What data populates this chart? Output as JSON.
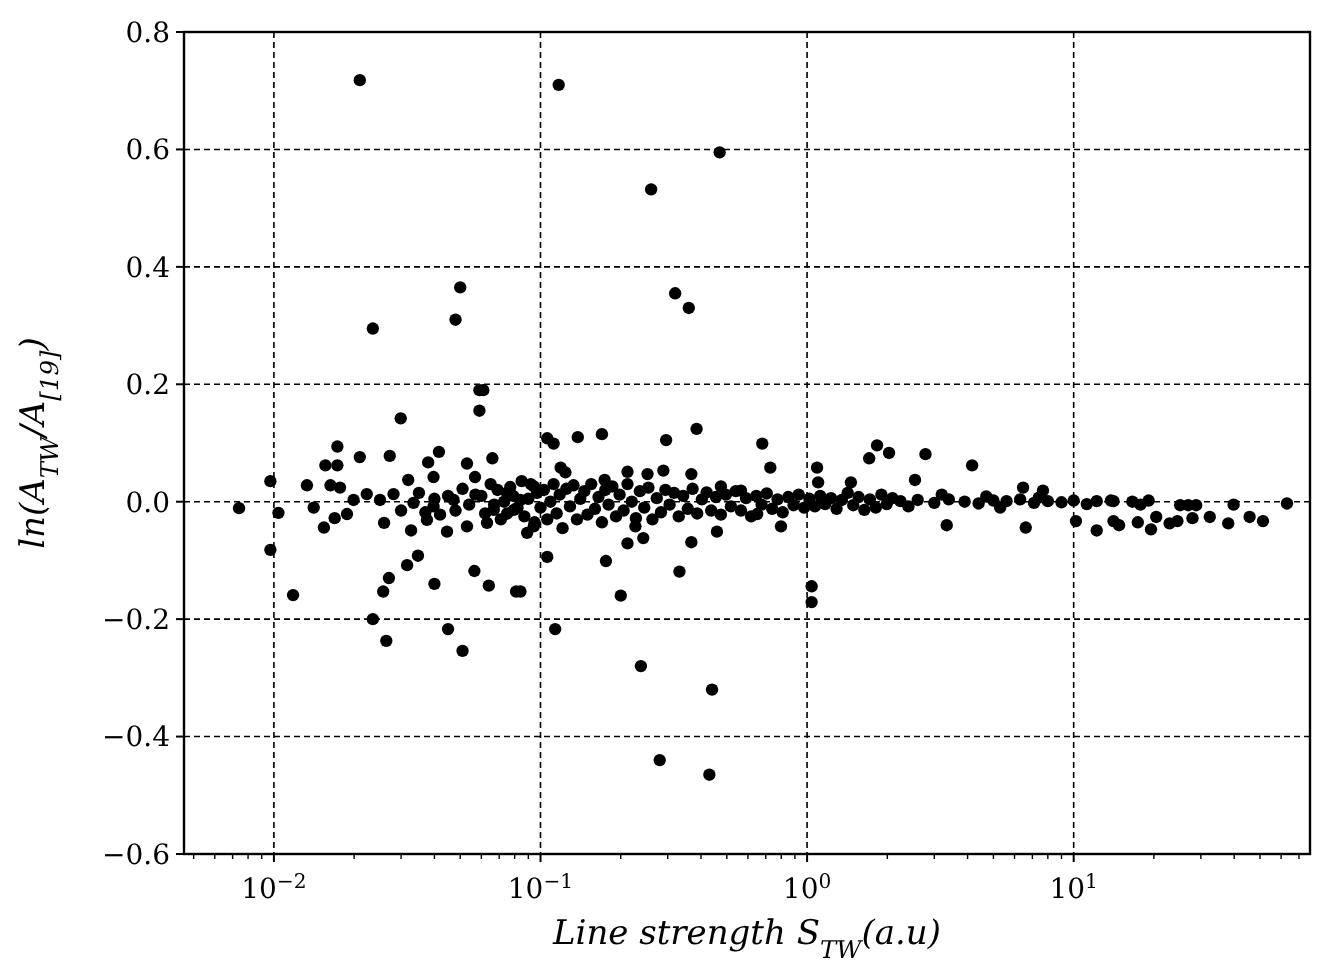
{
  "chart_data": {
    "type": "scatter",
    "xlabel": "Line strength S$_{TW}$(a.u)",
    "ylabel": "ln(A$_{TW}$/A$_{[19]}$)",
    "log": "x",
    "grid": true,
    "marker": "circle",
    "xlim": [
      0.0046,
      77
    ],
    "ylim": [
      -0.6,
      0.8
    ],
    "xticks": [
      {
        "value": 0.01,
        "label": "10$^{−2}$"
      },
      {
        "value": 0.1,
        "label": "10$^{−1}$"
      },
      {
        "value": 1,
        "label": "10$^{0}$"
      },
      {
        "value": 10,
        "label": "10$^{1}$"
      }
    ],
    "yticks": [
      {
        "value": -0.6,
        "label": "−0.6"
      },
      {
        "value": -0.4,
        "label": "−0.4"
      },
      {
        "value": -0.2,
        "label": "−0.2"
      },
      {
        "value": 0,
        "label": "0.0"
      },
      {
        "value": 0.2,
        "label": "0.2"
      },
      {
        "value": 0.4,
        "label": "0.4"
      },
      {
        "value": 0.6,
        "label": "0.6"
      },
      {
        "value": 0.8,
        "label": "0.8"
      }
    ],
    "series": [
      {
        "color": "#000000",
        "x": [
          0.0074,
          0.0097,
          0.0097,
          0.0104,
          0.0118,
          0.0235,
          0.0235,
          0.0264,
          0.0299,
          0.059,
          0.061,
          0.059,
          0.048,
          0.05,
          0.021,
          0.051,
          0.045,
          0.0565,
          0.064,
          0.081,
          0.04,
          0.0316,
          0.0347,
          0.027,
          0.0257,
          0.0173,
          0.0156,
          0.0173,
          0.0163,
          0.0177,
          0.0133,
          0.021,
          0.0272,
          0.0319,
          0.0379,
          0.0416,
          0.0397,
          0.053,
          0.0568,
          0.066,
          0.0141,
          0.0154,
          0.0169,
          0.0188,
          0.0199,
          0.0223,
          0.025,
          0.0281,
          0.0259,
          0.0327,
          0.0375,
          0.0446,
          0.053,
          0.063,
          0.0748,
          0.0891,
          0.0841,
          0.0944,
          0.0334,
          0.0397,
          0.0472,
          0.0668,
          0.0794,
          0.106,
          0.112,
          0.138,
          0.17,
          0.296,
          0.385,
          0.679,
          0.728,
          1.09,
          1.71,
          1.83,
          2.03,
          0.119,
          0.124,
          0.212,
          0.252,
          0.289,
          0.368,
          0.174,
          0.475,
          0.565,
          1.1,
          1.46,
          2.54,
          0.106,
          0.176,
          0.0841,
          0.2,
          0.332,
          0.1135,
          0.238,
          1.04,
          1.04,
          0.212,
          0.243,
          0.227,
          0.368,
          0.459,
          0.798,
          0.65,
          0.0944,
          0.117,
          0.26,
          0.47,
          0.32,
          0.36,
          0.28,
          0.43,
          0.44,
          2.78,
          4.16,
          3.34,
          6.61,
          6.46,
          7.67,
          10.2,
          12.2,
          14.1,
          14.8,
          17.4,
          19.5,
          20.4,
          22.9,
          24.5,
          26.9,
          27.9,
          32.4,
          38,
          45.7,
          51.3,
          63.1,
          14.1,
          16.6,
          19.1,
          12.2,
          13.8,
          39.8,
          25.1,
          28.8,
          17.8,
          2.24,
          2.6,
          3,
          3.4,
          3.9,
          4.4,
          5,
          5.6,
          6.3,
          7.1,
          8,
          9,
          10,
          11.2,
          2.4,
          3.2,
          4.7,
          5.3,
          7.4,
          0.06,
          0.062,
          0.065,
          0.067,
          0.069,
          0.071,
          0.073,
          0.075,
          0.077,
          0.079,
          0.082,
          0.085,
          0.087,
          0.09,
          0.092,
          0.095,
          0.097,
          0.1,
          0.103,
          0.106,
          0.109,
          0.112,
          0.115,
          0.118,
          0.121,
          0.125,
          0.129,
          0.133,
          0.137,
          0.141,
          0.146,
          0.15,
          0.155,
          0.16,
          0.165,
          0.17,
          0.175,
          0.18,
          0.186,
          0.192,
          0.198,
          0.205,
          0.212,
          0.22,
          0.228,
          0.236,
          0.245,
          0.254,
          0.263,
          0.273,
          0.283,
          0.294,
          0.305,
          0.317,
          0.33,
          0.343,
          0.357,
          0.372,
          0.387,
          0.403,
          0.42,
          0.437,
          0.455,
          0.475,
          0.496,
          0.518,
          0.54,
          0.565,
          0.59,
          0.617,
          0.645,
          0.675,
          0.706,
          0.74,
          0.775,
          0.81,
          0.85,
          0.89,
          0.93,
          0.975,
          1.02,
          1.07,
          1.12,
          1.17,
          1.23,
          1.29,
          1.35,
          1.42,
          1.49,
          1.56,
          1.64,
          1.72,
          1.81,
          1.9,
          1.99,
          2.09,
          0.045,
          0.048,
          0.051,
          0.054,
          0.057,
          0.04,
          0.042,
          0.035,
          0.037,
          0.03
        ],
        "values": [
          -0.011,
          0.035,
          -0.082,
          -0.019,
          -0.159,
          0.295,
          -0.2,
          -0.237,
          0.142,
          0.19,
          0.19,
          0.155,
          0.31,
          0.365,
          0.718,
          -0.254,
          -0.217,
          -0.118,
          -0.143,
          -0.153,
          -0.14,
          -0.108,
          -0.092,
          -0.13,
          -0.153,
          0.094,
          0.062,
          0.062,
          0.028,
          0.024,
          0.028,
          0.076,
          0.078,
          0.037,
          0.067,
          0.085,
          0.042,
          0.065,
          0.042,
          0.074,
          -0.01,
          -0.044,
          -0.028,
          -0.021,
          0.003,
          0.013,
          0.003,
          0.013,
          -0.036,
          -0.049,
          -0.031,
          -0.051,
          -0.042,
          -0.036,
          0.015,
          -0.053,
          0.003,
          0.026,
          -0.002,
          -0.008,
          0.003,
          -0.014,
          -0.014,
          0.108,
          0.099,
          0.11,
          0.115,
          0.105,
          0.124,
          0.099,
          0.058,
          0.058,
          0.074,
          0.096,
          0.083,
          0.058,
          0.05,
          0.051,
          0.047,
          0.053,
          0.047,
          0.037,
          0.026,
          0.019,
          0.033,
          0.033,
          0.037,
          -0.094,
          -0.101,
          -0.153,
          -0.16,
          -0.119,
          -0.217,
          -0.28,
          -0.144,
          -0.171,
          -0.071,
          -0.062,
          -0.042,
          -0.069,
          -0.051,
          -0.042,
          -0.021,
          -0.042,
          0.71,
          0.532,
          0.595,
          0.355,
          0.33,
          -0.44,
          -0.465,
          -0.32,
          0.081,
          0.062,
          -0.04,
          -0.044,
          0.024,
          0.019,
          -0.033,
          -0.049,
          -0.033,
          -0.04,
          -0.035,
          -0.047,
          -0.026,
          -0.037,
          -0.033,
          -0.006,
          -0.028,
          -0.026,
          -0.037,
          -0.026,
          -0.033,
          -0.003,
          0.001,
          0,
          0.002,
          0.001,
          0.002,
          -0.005,
          -0.006,
          -0.006,
          -0.005,
          0.001,
          0.003,
          -0.002,
          0.004,
          0,
          -0.003,
          0.002,
          0.001,
          0.004,
          -0.002,
          0.001,
          -0.001,
          0.002,
          -0.004,
          -0.008,
          0.012,
          0.009,
          -0.01,
          0.007,
          0.01,
          -0.02,
          0.03,
          -0.005,
          0.02,
          -0.03,
          0,
          -0.02,
          0.025,
          0.01,
          -0.01,
          0.035,
          -0.025,
          0.005,
          0.03,
          -0.035,
          0.015,
          -0.01,
          0.02,
          -0.03,
          0,
          0.03,
          -0.02,
          0.012,
          -0.045,
          0.022,
          -0.008,
          0.028,
          -0.03,
          0.005,
          0.018,
          -0.022,
          0.03,
          -0.012,
          0.008,
          -0.035,
          0.02,
          -0.005,
          0.026,
          -0.025,
          0.012,
          -0.015,
          0.03,
          0,
          -0.028,
          0.018,
          -0.01,
          0.024,
          -0.03,
          0.006,
          -0.018,
          0.02,
          -0.005,
          0.015,
          -0.025,
          0.01,
          -0.012,
          0.022,
          -0.02,
          0.004,
          0.016,
          -0.015,
          0.008,
          -0.022,
          0.012,
          -0.008,
          0.018,
          -0.015,
          0.006,
          -0.025,
          0.01,
          -0.005,
          0.014,
          -0.012,
          0.004,
          -0.018,
          0.008,
          -0.006,
          0.012,
          -0.01,
          0.005,
          -0.008,
          0.01,
          -0.004,
          0.006,
          -0.012,
          0.003,
          0.015,
          -0.006,
          0.008,
          -0.014,
          0.004,
          -0.01,
          0.012,
          -0.004,
          0.006,
          0.01,
          -0.015,
          0.022,
          -0.005,
          0.012,
          0.005,
          -0.022,
          0.015,
          -0.018,
          -0.015
        ]
      }
    ]
  }
}
